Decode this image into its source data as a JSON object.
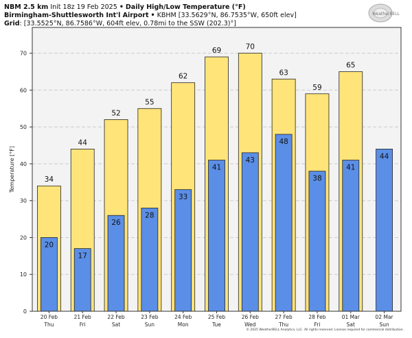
{
  "header": {
    "model": "NBM 2.5 km",
    "init": "Init 18z 19 Feb 2025",
    "title": "Daily High/Low Temperature (°F)",
    "station": "Birmingham-Shuttlesworth Int'l Airport",
    "station_info": "KBHM [33.5629°N, 86.7535°W, 650ft elev]",
    "grid_label": "Grid",
    "grid_info": "[33.5525°N, 86.7586°W, 604ft elev, 0.78mi to the SSW (202.3)°]",
    "separator": "•"
  },
  "logo": "WeatherBELL",
  "footer": "© 2025 WeatherBELL Analytics, LLC. All rights reserved. License required for commercial distribution.",
  "colors": {
    "high": "#ffe47a",
    "low": "#5b8ee6",
    "plot_bg": "#f3f3f3",
    "edge": "#222222"
  },
  "chart_data": {
    "type": "bar",
    "ylabel": "Temperature [°F]",
    "ylim": [
      0,
      77
    ],
    "yticks": [
      0,
      10,
      20,
      30,
      40,
      50,
      60,
      70
    ],
    "grid": true,
    "categories": [
      "20 Feb",
      "21 Feb",
      "22 Feb",
      "23 Feb",
      "24 Feb",
      "25 Feb",
      "26 Feb",
      "27 Feb",
      "28 Feb",
      "01 Mar",
      "02 Mar"
    ],
    "weekdays": [
      "Thu",
      "Fri",
      "Sat",
      "Sun",
      "Mon",
      "Tue",
      "Wed",
      "Thu",
      "Fri",
      "Sat",
      "Sun"
    ],
    "series": [
      {
        "key": "high",
        "values": [
          34,
          44,
          52,
          55,
          62,
          69,
          70,
          63,
          59,
          65,
          null
        ]
      },
      {
        "key": "low",
        "values": [
          20,
          17,
          26,
          28,
          33,
          41,
          43,
          48,
          38,
          41,
          44
        ]
      }
    ]
  }
}
